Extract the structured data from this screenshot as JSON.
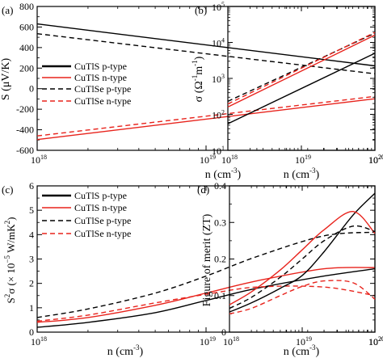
{
  "figure": {
    "panels": [
      {
        "label": "(a)",
        "ylabel_text": "S (μV/K)",
        "xlabel_text": "n (cm",
        "xlabel_sup": "-3",
        "xlabel_tail": ")",
        "yticks": [
          "800",
          "600",
          "400",
          "200",
          "0",
          "-200",
          "-400",
          "-600"
        ],
        "xticks": {
          "base": "10",
          "exps": [
            "18",
            "19",
            "20"
          ]
        }
      },
      {
        "label": "(b)",
        "ylabel_text": "σ (Ω",
        "ylabel_sup1": "-1",
        "ylabel_mid": "m",
        "ylabel_sup2": "-1",
        "ylabel_tail": ")",
        "xlabel_text": "n (cm",
        "xlabel_sup": "-3",
        "xlabel_tail": ")",
        "yticks": {
          "base": "10",
          "exps": [
            "1",
            "2",
            "3",
            "4",
            "5"
          ]
        },
        "xticks": {
          "base": "10",
          "exps": [
            "18",
            "19",
            "20"
          ]
        }
      },
      {
        "label": "(c)",
        "ylabel_text": "S",
        "ylabel_sup1": "2",
        "ylabel_mid": "σ (× 10",
        "ylabel_sup2": "−5",
        "ylabel_tail": " W/mK",
        "ylabel_sup3": "2",
        "ylabel_end": ")",
        "xlabel_text": "n (cm",
        "xlabel_sup": "-3",
        "xlabel_tail": ")",
        "yticks": [
          "0",
          "1",
          "2",
          "3",
          "4",
          "5",
          "6"
        ],
        "xticks": {
          "base": "10",
          "exps": [
            "18",
            "19",
            "20"
          ]
        }
      },
      {
        "label": "(d)",
        "ylabel_text": "Figure of merit (ZT)",
        "xlabel_text": "n (cm",
        "xlabel_sup": "-3",
        "xlabel_tail": ")",
        "yticks": [
          "0",
          "0.1",
          "0.2",
          "0.3",
          "0.4"
        ],
        "xticks": {
          "base": "10",
          "exps": [
            "18",
            "19",
            "20"
          ]
        }
      }
    ],
    "legend": [
      "CuTlS p-type",
      "CuTlS n-type",
      "CuTlSe p-type",
      "CuTlSe n-type"
    ],
    "colors": {
      "black": "#000000",
      "red": "#e8231c"
    }
  },
  "chart_data": [
    {
      "type": "line",
      "panel": "(a)",
      "xscale": "log",
      "xlim": [
        1e+18,
        1e+20
      ],
      "ylim": [
        -600,
        800
      ],
      "xlabel": "n (cm-3)",
      "ylabel": "S (μV/K)",
      "legend_position": "center-left",
      "series": [
        {
          "name": "CuTlS p-type",
          "color": "black",
          "dash": "solid",
          "x": [
            1e+18,
            1e+20
          ],
          "y": [
            630,
            222
          ]
        },
        {
          "name": "CuTlS n-type",
          "color": "red",
          "dash": "solid",
          "x": [
            1e+18,
            1e+20
          ],
          "y": [
            -495,
            -98
          ]
        },
        {
          "name": "CuTlSe p-type",
          "color": "black",
          "dash": "dashed",
          "x": [
            1e+18,
            1e+20
          ],
          "y": [
            535,
            145
          ]
        },
        {
          "name": "CuTlSe n-type",
          "color": "red",
          "dash": "dashed",
          "x": [
            1e+18,
            1e+20
          ],
          "y": [
            -460,
            -75
          ]
        }
      ]
    },
    {
      "type": "line",
      "panel": "(b)",
      "xscale": "log",
      "yscale": "log",
      "xlim": [
        1e+18,
        1e+20
      ],
      "ylim": [
        10,
        100000
      ],
      "xlabel": "n (cm-3)",
      "ylabel": "σ (Ω-1m-1)",
      "series": [
        {
          "name": "CuTlS p-type",
          "color": "black",
          "dash": "solid",
          "x": [
            1e+18,
            1e+20
          ],
          "y": [
            55,
            5000
          ]
        },
        {
          "name": "CuTlS n-type",
          "color": "red",
          "dash": "solid",
          "x": [
            1e+18,
            1e+20
          ],
          "y": [
            160,
            16000
          ]
        },
        {
          "name": "CuTlSe p-type",
          "color": "black",
          "dash": "dashed",
          "x": [
            1e+18,
            1e+20
          ],
          "y": [
            230,
            18000
          ]
        },
        {
          "name": "CuTlSe n-type",
          "color": "red",
          "dash": "dashed",
          "x": [
            1e+18,
            1e+20
          ],
          "y": [
            195,
            19000
          ]
        }
      ]
    },
    {
      "type": "line",
      "panel": "(c)",
      "xscale": "log",
      "xlim": [
        1e+18,
        1e+20
      ],
      "ylim": [
        0,
        6
      ],
      "xlabel": "n (cm-3)",
      "ylabel": "S2σ (× 10−5 W/mK2)",
      "legend_position": "top-left",
      "series": [
        {
          "name": "CuTlS p-type",
          "color": "black",
          "dash": "solid",
          "x": [
            1e+18,
            2e+18,
            5e+18,
            1e+19,
            2e+19,
            5e+19,
            1e+20
          ],
          "y": [
            0.2,
            0.4,
            0.8,
            1.3,
            1.8,
            2.3,
            2.6
          ]
        },
        {
          "name": "CuTlS n-type",
          "color": "red",
          "dash": "solid",
          "x": [
            1e+18,
            2e+18,
            5e+18,
            1e+19,
            2e+19,
            5e+19,
            1e+20
          ],
          "y": [
            0.4,
            0.6,
            1.1,
            1.6,
            2.1,
            2.6,
            2.65
          ]
        },
        {
          "name": "CuTlSe p-type",
          "color": "black",
          "dash": "dashed",
          "x": [
            1e+18,
            2e+18,
            5e+18,
            1e+19,
            2e+19,
            5e+19,
            1e+20
          ],
          "y": [
            0.6,
            0.95,
            1.6,
            2.3,
            3.1,
            3.95,
            4.1
          ]
        },
        {
          "name": "CuTlSe n-type",
          "color": "red",
          "dash": "dashed",
          "x": [
            1e+18,
            2e+18,
            5e+18,
            1e+19,
            2e+19,
            5e+19,
            1e+20
          ],
          "y": [
            0.45,
            0.7,
            1.2,
            1.55,
            1.85,
            1.85,
            1.5
          ]
        }
      ]
    },
    {
      "type": "line",
      "panel": "(d)",
      "xscale": "log",
      "xlim": [
        1e+18,
        1e+20
      ],
      "ylim": [
        0,
        0.4
      ],
      "xlabel": "n (cm-3)",
      "ylabel": "Figure of merit (ZT)",
      "series": [
        {
          "name": "CuTlS p-type",
          "color": "black",
          "dash": "solid",
          "x": [
            1e+18,
            2e+18,
            5e+18,
            1e+19,
            2e+19,
            5e+19,
            1e+20
          ],
          "y": [
            0.055,
            0.08,
            0.12,
            0.155,
            0.22,
            0.32,
            0.38
          ]
        },
        {
          "name": "CuTlS n-type",
          "color": "red",
          "dash": "solid",
          "x": [
            1e+18,
            2e+18,
            5e+18,
            1e+19,
            2e+19,
            5e+19,
            1e+20
          ],
          "y": [
            0.075,
            0.11,
            0.17,
            0.225,
            0.28,
            0.33,
            0.27
          ]
        },
        {
          "name": "CuTlSe p-type",
          "color": "black",
          "dash": "dashed",
          "x": [
            1e+18,
            2e+18,
            5e+18,
            1e+19,
            2e+19,
            5e+19,
            1e+20
          ],
          "y": [
            0.065,
            0.095,
            0.15,
            0.2,
            0.25,
            0.29,
            0.275
          ]
        },
        {
          "name": "CuTlSe n-type",
          "color": "red",
          "dash": "dashed",
          "x": [
            1e+18,
            2e+18,
            5e+18,
            1e+19,
            2e+19,
            5e+19,
            1e+20
          ],
          "y": [
            0.05,
            0.065,
            0.1,
            0.125,
            0.14,
            0.135,
            0.09
          ]
        }
      ]
    }
  ]
}
